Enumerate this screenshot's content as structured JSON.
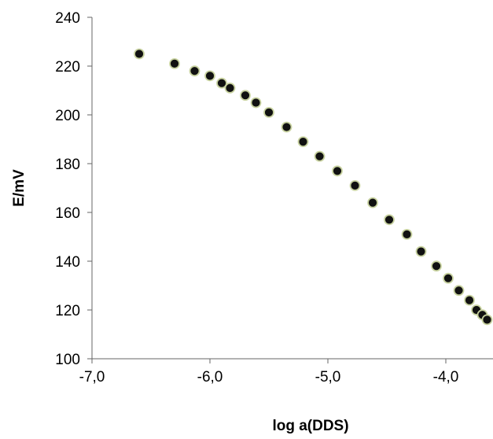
{
  "chart_data": {
    "type": "scatter",
    "title": "",
    "xlabel": "log a(DDS)",
    "ylabel": "E/mV",
    "xlim": [
      -7.0,
      -3.6
    ],
    "ylim": [
      100,
      240
    ],
    "x_ticks": [
      -7.0,
      -6.0,
      -5.0,
      -4.0
    ],
    "x_tick_labels": [
      "-7,0",
      "-6,0",
      "-5,0",
      "-4,0"
    ],
    "y_ticks": [
      100,
      120,
      140,
      160,
      180,
      200,
      220,
      240
    ],
    "y_tick_labels": [
      "100",
      "120",
      "140",
      "160",
      "180",
      "200",
      "220",
      "240"
    ],
    "grid": false,
    "legend": "none",
    "series": [
      {
        "x": [
          -6.6,
          -6.3,
          -6.13,
          -6.0,
          -5.9,
          -5.83,
          -5.7,
          -5.61,
          -5.5,
          -5.35,
          -5.21,
          -5.07,
          -4.92,
          -4.77,
          -4.62,
          -4.48,
          -4.33,
          -4.21,
          -4.08,
          -3.98,
          -3.89,
          -3.8,
          -3.74,
          -3.69,
          -3.65
        ],
        "y": [
          225,
          221,
          218,
          216,
          213,
          211,
          208,
          205,
          201,
          195,
          189,
          183,
          177,
          171,
          164,
          157,
          151,
          144,
          138,
          133,
          128,
          124,
          120,
          118,
          116
        ],
        "marker_fill": "#111111",
        "marker_edge": "#c8d2a0"
      }
    ],
    "axis_color": "#666666"
  }
}
